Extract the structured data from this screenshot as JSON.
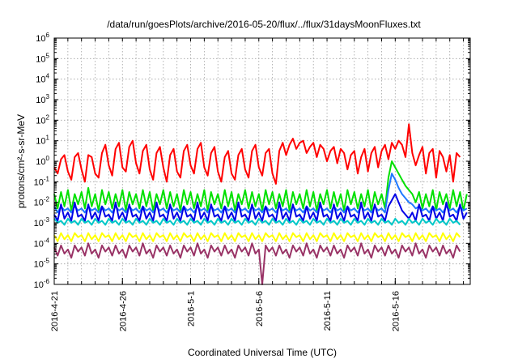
{
  "chart_data": {
    "type": "line",
    "title": "/data/run/goesPlots/archive/2016-05-20/flux/../flux/31daysMoonFluxes.txt",
    "xlabel": "Coordinated Universal Time (UTC)",
    "ylabel": "protons/cm²-s-sr-MeV",
    "yscale": "log",
    "ylim_exp": [
      -6,
      6
    ],
    "xlim_days": [
      0,
      30.5
    ],
    "x_ticks": [
      {
        "label": "2016-4-21",
        "day": 0
      },
      {
        "label": "2016-4-26",
        "day": 5
      },
      {
        "label": "2016-5-1",
        "day": 10
      },
      {
        "label": "2016-5-6",
        "day": 15
      },
      {
        "label": "2016-5-11",
        "day": 20
      },
      {
        "label": "2016-5-16",
        "day": 25
      }
    ],
    "grid": true,
    "series": [
      {
        "color": "#ff0000",
        "samples_per_day": 4,
        "log10_values": [
          -0.3,
          -0.6,
          0.1,
          0.3,
          -0.5,
          -0.9,
          0.2,
          0.4,
          -0.4,
          -1.0,
          0.3,
          0.2,
          -0.6,
          -0.8,
          0.4,
          0.8,
          -0.2,
          -0.7,
          0.6,
          0.9,
          -0.3,
          -0.5,
          0.7,
          1.0,
          -0.1,
          -0.6,
          0.5,
          0.8,
          -0.4,
          -0.9,
          0.4,
          0.7,
          -0.3,
          -1.0,
          0.3,
          0.6,
          -0.5,
          -0.8,
          0.5,
          0.8,
          -0.2,
          -0.6,
          0.6,
          0.9,
          -0.3,
          -0.7,
          0.4,
          0.7,
          -0.5,
          -1.0,
          0.2,
          0.5,
          -0.6,
          -0.9,
          0.3,
          0.6,
          -0.4,
          -0.8,
          0.5,
          0.8,
          -0.3,
          -0.7,
          0.4,
          0.6,
          -0.6,
          -1.1,
          0.5,
          0.9,
          0.3,
          0.8,
          1.1,
          0.6,
          0.9,
          1.0,
          0.4,
          0.7,
          0.9,
          0.2,
          0.8,
          0.6,
          0.0,
          0.5,
          0.7,
          -0.1,
          0.6,
          0.4,
          -0.4,
          0.3,
          0.5,
          -0.6,
          0.2,
          0.6,
          -0.5,
          0.4,
          0.7,
          -0.3,
          0.5,
          0.8,
          0.1,
          0.9,
          0.6,
          1.0,
          0.8,
          0.2,
          1.8,
          0.4,
          -0.2,
          0.3,
          0.7,
          -0.6,
          0.4,
          0.6,
          -0.8,
          0.5,
          0.2,
          -0.5,
          0.3,
          -1.0,
          0.4,
          0.2
        ]
      },
      {
        "color": "#00e000",
        "samples_per_day": 4,
        "log10_values": [
          -1.6,
          -2.3,
          -1.5,
          -2.2,
          -1.4,
          -2.4,
          -1.6,
          -2.1,
          -1.5,
          -2.3,
          -1.3,
          -2.2,
          -1.6,
          -2.4,
          -1.4,
          -2.1,
          -1.5,
          -2.3,
          -1.6,
          -2.2,
          -1.4,
          -2.4,
          -1.5,
          -2.1,
          -1.6,
          -2.3,
          -1.4,
          -2.2,
          -1.5,
          -2.4,
          -1.6,
          -2.1,
          -1.4,
          -2.3,
          -1.5,
          -2.2,
          -1.6,
          -2.4,
          -1.4,
          -2.1,
          -1.5,
          -2.3,
          -1.6,
          -2.2,
          -1.4,
          -2.4,
          -1.5,
          -2.1,
          -1.6,
          -2.3,
          -1.4,
          -2.2,
          -1.5,
          -2.4,
          -1.6,
          -2.1,
          -1.4,
          -2.3,
          -1.5,
          -2.2,
          -1.6,
          -2.4,
          -1.4,
          -2.1,
          -1.5,
          -2.3,
          -1.6,
          -2.2,
          -1.4,
          -2.4,
          -1.5,
          -2.1,
          -1.6,
          -2.3,
          -1.4,
          -2.2,
          -1.5,
          -2.4,
          -1.6,
          -2.1,
          -1.4,
          -2.3,
          -1.5,
          -2.2,
          -1.6,
          -2.4,
          -1.4,
          -2.1,
          -1.5,
          -2.3,
          -1.6,
          -2.2,
          -1.4,
          -2.4,
          -1.5,
          -2.1,
          -1.6,
          -2.3,
          -0.8,
          0.0,
          -0.3,
          -0.6,
          -0.9,
          -1.2,
          -1.4,
          -1.6,
          -2.0,
          -1.5,
          -2.3,
          -1.6,
          -2.2,
          -1.4,
          -2.4,
          -1.5,
          -2.1,
          -1.6,
          -2.3,
          -1.4,
          -2.2,
          -1.5,
          -2.4,
          -1.6
        ]
      },
      {
        "color": "#1e78ff",
        "samples_per_day": 4,
        "log10_values": [
          -2.2,
          -2.5,
          -2.2,
          -2.4,
          -2.3,
          -2.5,
          -2.2,
          -2.4,
          -2.3,
          -2.5,
          -2.2,
          -2.4,
          -2.3,
          -2.5,
          -2.2,
          -2.4,
          -2.3,
          -2.5,
          -2.2,
          -2.4,
          -2.3,
          -2.5,
          -2.2,
          -2.4,
          -2.3,
          -2.5,
          -2.2,
          -2.4,
          -2.3,
          -2.5,
          -2.2,
          -2.4,
          -2.3,
          -2.5,
          -2.2,
          -2.4,
          -2.3,
          -2.5,
          -2.2,
          -2.4,
          -2.3,
          -2.5,
          -2.2,
          -2.4,
          -2.3,
          -2.5,
          -2.2,
          -2.4,
          -2.3,
          -2.5,
          -2.2,
          -2.4,
          -2.3,
          -2.5,
          -2.2,
          -2.4,
          -2.3,
          -2.5,
          -2.2,
          -2.4,
          -2.3,
          -2.5,
          -2.2,
          -2.4,
          -2.3,
          -2.5,
          -2.2,
          -2.4,
          -2.3,
          -2.5,
          -2.2,
          -2.4,
          -2.3,
          -2.5,
          -2.2,
          -2.4,
          -2.3,
          -2.5,
          -2.2,
          -2.4,
          -2.3,
          -2.5,
          -2.2,
          -2.4,
          -2.3,
          -2.5,
          -2.2,
          -2.4,
          -2.3,
          -2.5,
          -2.2,
          -2.4,
          -2.3,
          -2.5,
          -2.2,
          -2.4,
          -2.3,
          -2.5,
          -1.4,
          -0.6,
          -0.9,
          -1.3,
          -1.6,
          -1.8,
          -2.0,
          -2.1,
          -2.3,
          -2.2,
          -2.4,
          -2.3,
          -2.5,
          -2.2,
          -2.4,
          -2.3,
          -2.5,
          -2.2,
          -2.4,
          -2.3,
          -2.5,
          -2.2,
          -2.4,
          -2.3
        ]
      },
      {
        "color": "#0000e6",
        "samples_per_day": 4,
        "log10_values": [
          -2.6,
          -2.9,
          -2.1,
          -2.8,
          -2.5,
          -2.9,
          -2.0,
          -2.7,
          -2.6,
          -2.9,
          -2.1,
          -2.8,
          -2.5,
          -2.9,
          -2.2,
          -2.7,
          -2.6,
          -2.9,
          -2.0,
          -2.8,
          -2.5,
          -2.9,
          -2.1,
          -2.7,
          -2.6,
          -2.9,
          -2.2,
          -2.8,
          -2.5,
          -2.9,
          -2.0,
          -2.7,
          -2.6,
          -2.9,
          -2.1,
          -2.8,
          -2.5,
          -2.9,
          -2.2,
          -2.7,
          -2.6,
          -2.9,
          -2.0,
          -2.8,
          -2.5,
          -2.9,
          -2.1,
          -2.7,
          -2.6,
          -2.9,
          -2.2,
          -2.8,
          -2.5,
          -2.9,
          -2.0,
          -2.7,
          -2.6,
          -2.9,
          -2.1,
          -2.8,
          -2.5,
          -2.9,
          -2.2,
          -2.7,
          -2.6,
          -2.9,
          -2.0,
          -2.8,
          -2.5,
          -2.9,
          -2.1,
          -2.7,
          -2.6,
          -2.9,
          -2.2,
          -2.8,
          -2.5,
          -2.9,
          -2.0,
          -2.7,
          -2.6,
          -2.9,
          -2.1,
          -2.8,
          -2.5,
          -2.9,
          -2.2,
          -2.7,
          -2.6,
          -2.9,
          -2.0,
          -2.8,
          -2.5,
          -2.9,
          -2.1,
          -2.7,
          -2.6,
          -2.9,
          -2.2,
          -1.9,
          -1.6,
          -2.0,
          -2.4,
          -2.6,
          -2.8,
          -2.5,
          -2.9,
          -2.1,
          -2.7,
          -2.6,
          -2.9,
          -2.2,
          -2.8,
          -2.5,
          -2.9,
          -2.0,
          -2.7,
          -2.6,
          -2.9,
          -2.1,
          -2.8,
          -2.5
        ]
      },
      {
        "color": "#00c8c8",
        "samples_per_day": 4,
        "log10_values": [
          -2.8,
          -3.0,
          -2.9,
          -3.1,
          -2.8,
          -3.0,
          -2.9,
          -3.1,
          -2.8,
          -3.0,
          -2.9,
          -3.1,
          -2.8,
          -3.0,
          -2.9,
          -3.1,
          -2.8,
          -3.0,
          -2.9,
          -3.1,
          -2.8,
          -3.0,
          -2.9,
          -3.1,
          -2.8,
          -3.0,
          -2.9,
          -3.1,
          -2.8,
          -3.0,
          -2.9,
          -3.1,
          -2.8,
          -3.0,
          -2.9,
          -3.1,
          -2.8,
          -3.0,
          -2.9,
          -3.1,
          -2.8,
          -3.0,
          -2.9,
          -3.1,
          -2.8,
          -3.0,
          -2.9,
          -3.1,
          -2.8,
          -3.0,
          -2.9,
          -3.1,
          -2.8,
          -3.0,
          -2.9,
          -3.1,
          -2.8,
          -3.0,
          -2.9,
          -3.1,
          -2.8,
          -3.0,
          -2.9,
          -3.1,
          -2.8,
          -3.0,
          -2.9,
          -3.1,
          -2.8,
          -3.0,
          -2.9,
          -3.1,
          -2.8,
          -3.0,
          -2.9,
          -3.1,
          -2.8,
          -3.0,
          -2.9,
          -3.1,
          -2.8,
          -3.0,
          -2.9,
          -3.1,
          -2.8,
          -3.0,
          -2.9,
          -3.1,
          -2.8,
          -3.0,
          -2.9,
          -3.1,
          -2.8,
          -3.0,
          -2.9,
          -3.1,
          -2.8,
          -3.0,
          -2.9,
          -3.1,
          -2.8,
          -3.0,
          -2.9,
          -3.1,
          -2.8,
          -3.0,
          -2.9,
          -3.1,
          -2.8,
          -3.0,
          -2.9,
          -3.1,
          -2.8,
          -3.0,
          -2.9,
          -3.1,
          -2.8,
          -3.0,
          -2.9,
          -3.1
        ]
      },
      {
        "color": "#ffff00",
        "samples_per_day": 4,
        "log10_values": [
          -3.6,
          -3.9,
          -3.5,
          -3.8,
          -3.6,
          -3.9,
          -3.5,
          -3.7,
          -3.6,
          -3.9,
          -3.5,
          -3.8,
          -3.6,
          -3.9,
          -3.5,
          -3.7,
          -3.6,
          -3.9,
          -3.5,
          -3.8,
          -3.6,
          -3.9,
          -3.5,
          -3.7,
          -3.6,
          -3.9,
          -3.5,
          -3.8,
          -3.6,
          -3.9,
          -3.5,
          -3.7,
          -3.6,
          -3.9,
          -3.5,
          -3.8,
          -3.6,
          -3.9,
          -3.5,
          -3.7,
          -3.6,
          -3.9,
          -3.5,
          -3.8,
          -3.6,
          -3.9,
          -3.5,
          -3.7,
          -3.6,
          -3.9,
          -3.5,
          -3.8,
          -3.6,
          -3.9,
          -3.5,
          -3.7,
          -3.6,
          -3.9,
          -3.5,
          -3.8,
          -3.6,
          -3.9,
          -3.5,
          -3.7,
          -3.6,
          -3.9,
          -3.5,
          -3.8,
          -3.6,
          -3.9,
          -3.5,
          -3.7,
          -3.6,
          -3.9,
          -3.5,
          -3.8,
          -3.6,
          -3.9,
          -3.5,
          -3.7,
          -3.6,
          -3.9,
          -3.5,
          -3.8,
          -3.6,
          -3.9,
          -3.5,
          -3.7,
          -3.6,
          -3.9,
          -3.5,
          -3.8,
          -3.6,
          -3.9,
          -3.5,
          -3.7,
          -3.6,
          -3.9,
          -3.5,
          -3.8,
          -3.6,
          -3.9,
          -3.5,
          -3.7,
          -3.6,
          -3.9,
          -3.5,
          -3.8,
          -3.6,
          -3.9,
          -3.5,
          -3.7,
          -3.6,
          -3.9,
          -3.5,
          -3.8,
          -3.6,
          -3.9,
          -3.5,
          -3.7
        ]
      },
      {
        "color": "#993366",
        "samples_per_day": 4,
        "log10_values": [
          -4.2,
          -4.6,
          -4.1,
          -4.5,
          -4.3,
          -4.7,
          -4.1,
          -4.4,
          -4.2,
          -4.6,
          -4.0,
          -4.5,
          -4.3,
          -4.7,
          -4.1,
          -4.4,
          -4.2,
          -4.6,
          -4.1,
          -4.5,
          -4.3,
          -4.7,
          -4.1,
          -4.4,
          -4.2,
          -4.6,
          -4.0,
          -4.5,
          -4.3,
          -4.7,
          -4.1,
          -4.4,
          -4.2,
          -4.6,
          -4.1,
          -4.5,
          -4.3,
          -4.7,
          -4.1,
          -4.4,
          -4.2,
          -4.6,
          -4.0,
          -4.5,
          -4.3,
          -4.7,
          -4.1,
          -4.4,
          -4.2,
          -4.6,
          -4.1,
          -4.5,
          -4.3,
          -4.7,
          -4.1,
          -4.4,
          -4.2,
          -4.6,
          -4.0,
          -4.5,
          -4.3,
          -6.0,
          -4.1,
          -4.4,
          -4.2,
          -4.6,
          -4.1,
          -4.5,
          -4.3,
          -4.7,
          -4.1,
          -4.4,
          -4.2,
          -4.6,
          -4.0,
          -4.5,
          -4.3,
          -4.7,
          -4.1,
          -4.4,
          -4.2,
          -4.6,
          -4.1,
          -4.5,
          -4.3,
          -4.7,
          -4.1,
          -4.4,
          -4.2,
          -4.6,
          -4.0,
          -4.5,
          -4.3,
          -4.7,
          -4.1,
          -4.4,
          -4.2,
          -4.6,
          -4.1,
          -4.5,
          -4.3,
          -4.7,
          -4.1,
          -4.4,
          -4.2,
          -4.6,
          -4.0,
          -4.5,
          -4.3,
          -4.7,
          -4.1,
          -4.4,
          -4.2,
          -4.6,
          -4.1,
          -4.5,
          -4.3,
          -4.7,
          -4.1,
          -4.4
        ]
      }
    ]
  }
}
